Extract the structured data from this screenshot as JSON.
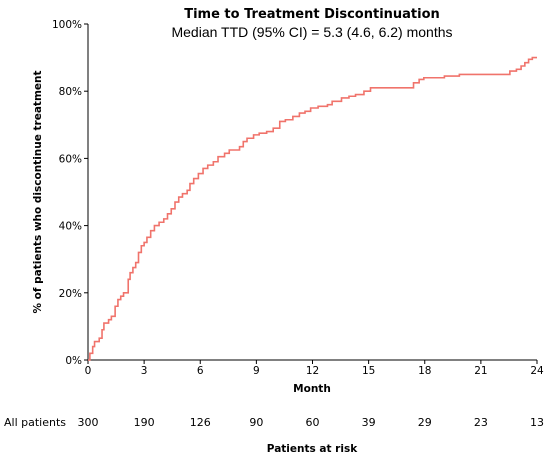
{
  "chart_data": {
    "type": "line",
    "title": "Time to Treatment Discontinuation",
    "subtitle": "Median TTD (95% CI) = 5.3 (4.6, 6.2) months",
    "xlabel": "Month",
    "ylabel": "% of patients who discontinue treatment",
    "xlim": [
      0,
      24
    ],
    "ylim": [
      0,
      100
    ],
    "x_ticks": [
      0,
      3,
      6,
      9,
      12,
      15,
      18,
      21,
      24
    ],
    "y_ticks": [
      0,
      20,
      40,
      60,
      80,
      100
    ],
    "y_tick_labels": [
      "0%",
      "20%",
      "40%",
      "60%",
      "80%",
      "100%"
    ],
    "grid": false,
    "line_color": "#f0736b",
    "series": [
      {
        "step": true,
        "points": [
          [
            0,
            0
          ],
          [
            0.1,
            2
          ],
          [
            0.25,
            4
          ],
          [
            0.35,
            5.5
          ],
          [
            0.6,
            6.5
          ],
          [
            0.75,
            9
          ],
          [
            0.85,
            11
          ],
          [
            1.1,
            12
          ],
          [
            1.25,
            13
          ],
          [
            1.45,
            16
          ],
          [
            1.6,
            18
          ],
          [
            1.75,
            19
          ],
          [
            1.9,
            20
          ],
          [
            2.15,
            24
          ],
          [
            2.25,
            26
          ],
          [
            2.4,
            27.5
          ],
          [
            2.55,
            29
          ],
          [
            2.7,
            32
          ],
          [
            2.85,
            34
          ],
          [
            3.0,
            35
          ],
          [
            3.15,
            36.5
          ],
          [
            3.35,
            38.5
          ],
          [
            3.55,
            40
          ],
          [
            3.8,
            41
          ],
          [
            4.05,
            42
          ],
          [
            4.25,
            43.5
          ],
          [
            4.45,
            45
          ],
          [
            4.65,
            47
          ],
          [
            4.85,
            48.5
          ],
          [
            5.05,
            49.5
          ],
          [
            5.3,
            50.5
          ],
          [
            5.45,
            52.5
          ],
          [
            5.65,
            54
          ],
          [
            5.9,
            55.5
          ],
          [
            6.15,
            57
          ],
          [
            6.4,
            58
          ],
          [
            6.7,
            59
          ],
          [
            6.95,
            60.5
          ],
          [
            7.3,
            61.5
          ],
          [
            7.55,
            62.5
          ],
          [
            8.1,
            63.5
          ],
          [
            8.3,
            65
          ],
          [
            8.5,
            66
          ],
          [
            8.85,
            67
          ],
          [
            9.15,
            67.5
          ],
          [
            9.55,
            68
          ],
          [
            9.9,
            69
          ],
          [
            10.25,
            71
          ],
          [
            10.55,
            71.5
          ],
          [
            10.95,
            72.5
          ],
          [
            11.3,
            73.5
          ],
          [
            11.6,
            74
          ],
          [
            11.9,
            75
          ],
          [
            12.3,
            75.5
          ],
          [
            12.8,
            76
          ],
          [
            13.05,
            77
          ],
          [
            13.55,
            78
          ],
          [
            13.95,
            78.5
          ],
          [
            14.3,
            79
          ],
          [
            14.75,
            80
          ],
          [
            15.1,
            81
          ],
          [
            15.9,
            81
          ],
          [
            17.25,
            81
          ],
          [
            17.4,
            82.5
          ],
          [
            17.7,
            83.5
          ],
          [
            17.95,
            84
          ],
          [
            18.4,
            84
          ],
          [
            19.05,
            84.5
          ],
          [
            19.85,
            85
          ],
          [
            20.75,
            85
          ],
          [
            21.9,
            85
          ],
          [
            22.55,
            86
          ],
          [
            22.9,
            86.5
          ],
          [
            23.15,
            87.5
          ],
          [
            23.35,
            88.5
          ],
          [
            23.55,
            89.5
          ],
          [
            23.75,
            90
          ],
          [
            24,
            90
          ]
        ]
      }
    ],
    "risk_table": {
      "row_label": "All patients",
      "title": "Patients at risk",
      "months": [
        0,
        3,
        6,
        9,
        12,
        15,
        18,
        21,
        24
      ],
      "counts": [
        "300",
        "190",
        "126",
        "90",
        "60",
        "39",
        "29",
        "23",
        "13"
      ]
    }
  }
}
